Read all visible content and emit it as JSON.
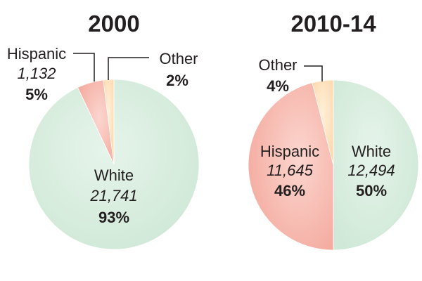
{
  "chart_data": [
    {
      "type": "pie",
      "title": "2000",
      "slices": [
        {
          "label": "White",
          "count": "21,741",
          "percent": "93%",
          "value": 93,
          "color": "#d6ecdd"
        },
        {
          "label": "Hispanic",
          "count": "1,132",
          "percent": "5%",
          "value": 5,
          "color": "#f7b7ad"
        },
        {
          "label": "Other",
          "count": "",
          "percent": "2%",
          "value": 2,
          "color": "#fde0b9"
        }
      ]
    },
    {
      "type": "pie",
      "title": "2010-14",
      "slices": [
        {
          "label": "White",
          "count": "12,494",
          "percent": "50%",
          "value": 50,
          "color": "#d6ecdd"
        },
        {
          "label": "Hispanic",
          "count": "11,645",
          "percent": "46%",
          "value": 46,
          "color": "#f7b7ad"
        },
        {
          "label": "Other",
          "count": "",
          "percent": "4%",
          "value": 4,
          "color": "#fde0b9"
        }
      ]
    }
  ]
}
